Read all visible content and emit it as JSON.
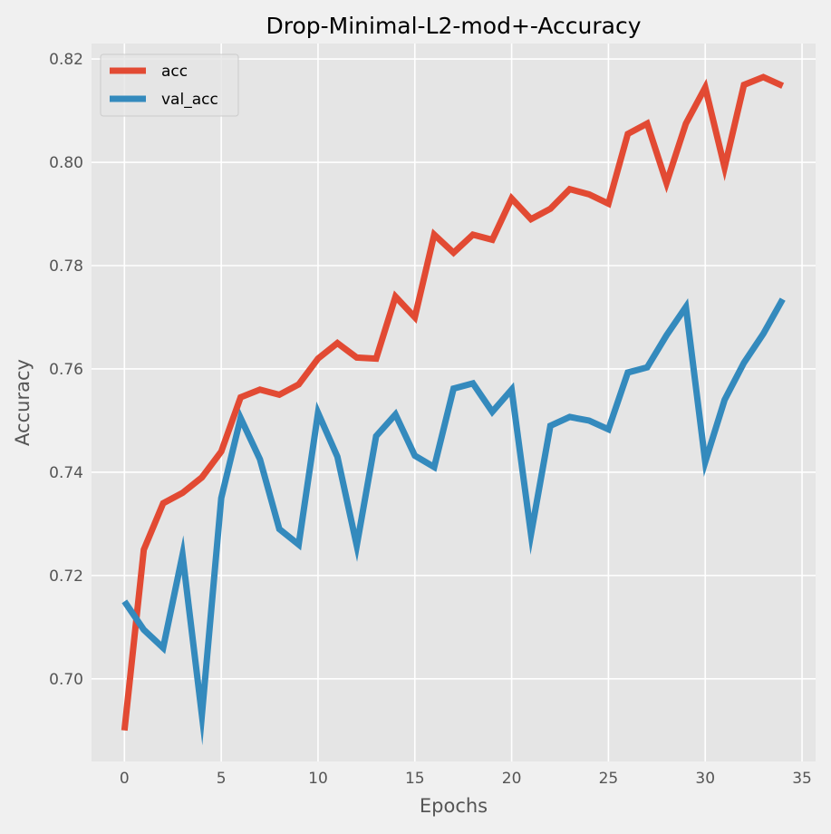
{
  "chart_data": {
    "type": "line",
    "title": "Drop-Minimal-L2-mod+-Accuracy",
    "xlabel": "Epochs",
    "ylabel": "Accuracy",
    "xlim": [
      -1.7,
      35.7
    ],
    "ylim": [
      0.684,
      0.823
    ],
    "xticks": [
      0,
      5,
      10,
      15,
      20,
      25,
      30,
      35
    ],
    "yticks": [
      0.7,
      0.72,
      0.74,
      0.76,
      0.78,
      0.8,
      0.82
    ],
    "grid": true,
    "legend_position": "upper-left",
    "x": [
      0,
      1,
      2,
      3,
      4,
      5,
      6,
      7,
      8,
      9,
      10,
      11,
      12,
      13,
      14,
      15,
      16,
      17,
      18,
      19,
      20,
      21,
      22,
      23,
      24,
      25,
      26,
      27,
      28,
      29,
      30,
      31,
      32,
      33,
      34
    ],
    "series": [
      {
        "name": "acc",
        "color": "#e24a33",
        "values": [
          0.69,
          0.725,
          0.734,
          0.736,
          0.739,
          0.744,
          0.7545,
          0.756,
          0.755,
          0.757,
          0.762,
          0.765,
          0.7622,
          0.762,
          0.774,
          0.77,
          0.786,
          0.7825,
          0.786,
          0.785,
          0.793,
          0.789,
          0.791,
          0.7948,
          0.7938,
          0.792,
          0.8055,
          0.8075,
          0.796,
          0.8075,
          0.8145,
          0.799,
          0.815,
          0.8165,
          0.8148
        ]
      },
      {
        "name": "val_acc",
        "color": "#348abd",
        "values": [
          0.715,
          0.7095,
          0.706,
          0.724,
          0.693,
          0.735,
          0.7505,
          0.7425,
          0.729,
          0.726,
          0.7515,
          0.743,
          0.7258,
          0.747,
          0.7512,
          0.7432,
          0.741,
          0.7562,
          0.7572,
          0.7517,
          0.756,
          0.728,
          0.749,
          0.7507,
          0.75,
          0.7483,
          0.7593,
          0.7603,
          0.7665,
          0.772,
          0.742,
          0.754,
          0.7612,
          0.7668,
          0.7735
        ]
      }
    ]
  }
}
